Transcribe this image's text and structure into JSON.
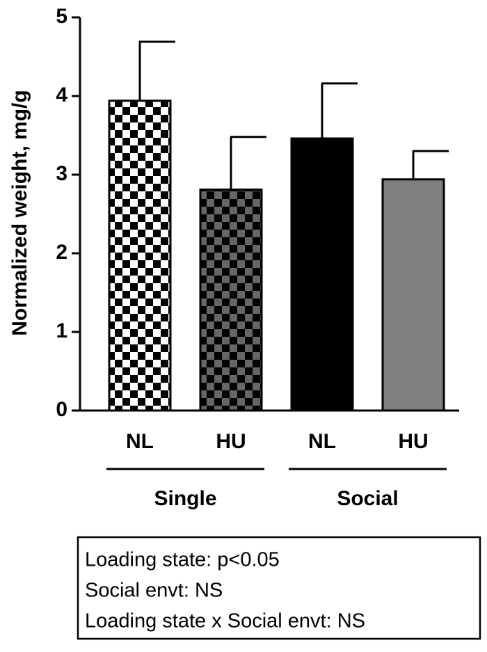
{
  "chart_data": {
    "type": "bar",
    "y_label": "Normalized weight, mg/g",
    "categories": [
      "NL",
      "HU",
      "NL",
      "HU"
    ],
    "groups": [
      "Single",
      "Social"
    ],
    "values": [
      3.94,
      2.81,
      3.46,
      2.94
    ],
    "errors": [
      0.75,
      0.67,
      0.7,
      0.36
    ],
    "fills": [
      {
        "pattern": "checker",
        "colors": [
          "#ffffff",
          "#000000"
        ]
      },
      {
        "pattern": "checker",
        "colors": [
          "#666666",
          "#000000"
        ]
      },
      {
        "pattern": "solid",
        "colors": [
          "#000000"
        ]
      },
      {
        "pattern": "solid",
        "colors": [
          "#808080"
        ]
      }
    ],
    "ylim": [
      0,
      5
    ],
    "yticks": [
      0,
      1,
      2,
      3,
      4,
      5
    ],
    "annotations": [
      "Loading state: p<0.05",
      "Social envt: NS",
      "Loading state x Social envt: NS"
    ]
  }
}
